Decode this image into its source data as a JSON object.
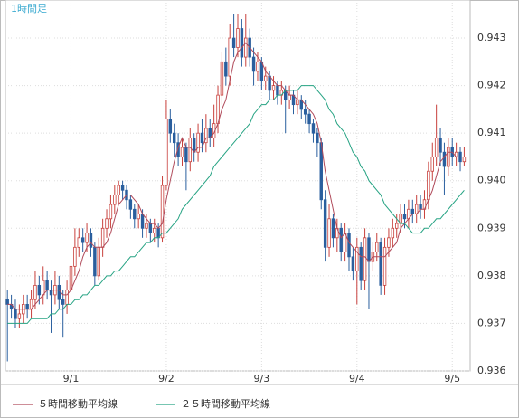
{
  "chart_data": {
    "type": "candlestick",
    "title": "1時間足",
    "open": [
      0.9375,
      0.9374,
      0.9373,
      0.9371,
      0.9372,
      0.9374,
      0.9373,
      0.9375,
      0.9378,
      0.9376,
      0.9379,
      0.9377,
      0.9376,
      0.9378,
      0.9375,
      0.9374,
      0.9377,
      0.9382,
      0.9386,
      0.9388,
      0.9387,
      0.9389,
      0.9386,
      0.938,
      0.9386,
      0.939,
      0.9392,
      0.9395,
      0.9397,
      0.9399,
      0.9398,
      0.9396,
      0.9394,
      0.9392,
      0.9393,
      0.939,
      0.9391,
      0.9389,
      0.939,
      0.9388,
      0.9399,
      0.9413,
      0.941,
      0.9408,
      0.9405,
      0.9407,
      0.9404,
      0.9409,
      0.9406,
      0.941,
      0.9408,
      0.9411,
      0.9409,
      0.9412,
      0.9418,
      0.9425,
      0.9422,
      0.943,
      0.9428,
      0.9432,
      0.9426,
      0.943,
      0.9426,
      0.9423,
      0.9425,
      0.9421,
      0.9422,
      0.9419,
      0.942,
      0.9418,
      0.9419,
      0.9417,
      0.9418,
      0.9416,
      0.9417,
      0.9415,
      0.9414,
      0.9412,
      0.941,
      0.9408,
      0.9396,
      0.9386,
      0.9392,
      0.9388,
      0.939,
      0.9385,
      0.9389,
      0.9384,
      0.9381,
      0.9386,
      0.9379,
      0.9388,
      0.9383,
      0.9385,
      0.9387,
      0.9378,
      0.9386,
      0.9388,
      0.939,
      0.9391,
      0.9393,
      0.9392,
      0.9394,
      0.9393,
      0.9395,
      0.9394,
      0.9396,
      0.9402,
      0.9405,
      0.9409,
      0.9406,
      0.9403,
      0.9407,
      0.9405,
      0.9406,
      0.9404
    ],
    "high": [
      0.9377,
      0.9376,
      0.9375,
      0.9374,
      0.9376,
      0.9376,
      0.9377,
      0.9381,
      0.938,
      0.9382,
      0.9381,
      0.9379,
      0.9381,
      0.938,
      0.9377,
      0.9379,
      0.9384,
      0.939,
      0.939,
      0.939,
      0.9391,
      0.939,
      0.9387,
      0.9388,
      0.9392,
      0.9394,
      0.9397,
      0.9399,
      0.94,
      0.94,
      0.9399,
      0.9397,
      0.9395,
      0.9395,
      0.9394,
      0.9393,
      0.9392,
      0.9392,
      0.9391,
      0.9401,
      0.9417,
      0.9415,
      0.9412,
      0.941,
      0.9409,
      0.9408,
      0.9411,
      0.941,
      0.9412,
      0.9413,
      0.9414,
      0.9413,
      0.9416,
      0.942,
      0.9427,
      0.9428,
      0.9433,
      0.9435,
      0.9435,
      0.9434,
      0.9435,
      0.9432,
      0.9428,
      0.9427,
      0.9426,
      0.9424,
      0.9423,
      0.9422,
      0.9421,
      0.9421,
      0.942,
      0.942,
      0.9419,
      0.9419,
      0.9418,
      0.9417,
      0.9415,
      0.9413,
      0.9411,
      0.9409,
      0.9398,
      0.9395,
      0.9393,
      0.9392,
      0.9391,
      0.9391,
      0.939,
      0.9386,
      0.9388,
      0.9387,
      0.939,
      0.9389,
      0.9387,
      0.9389,
      0.9388,
      0.9388,
      0.939,
      0.9392,
      0.9393,
      0.9395,
      0.9395,
      0.9396,
      0.9396,
      0.9397,
      0.9397,
      0.9398,
      0.9404,
      0.9408,
      0.9416,
      0.9411,
      0.9408,
      0.9409,
      0.9409,
      0.9408,
      0.9407,
      0.9407
    ],
    "low": [
      0.9362,
      0.9371,
      0.9369,
      0.9369,
      0.937,
      0.9371,
      0.9371,
      0.9373,
      0.9374,
      0.9374,
      0.9375,
      0.9368,
      0.9374,
      0.9373,
      0.9367,
      0.9372,
      0.9376,
      0.938,
      0.9384,
      0.9385,
      0.9385,
      0.9384,
      0.9378,
      0.9379,
      0.9384,
      0.9388,
      0.939,
      0.9393,
      0.9395,
      0.9396,
      0.9394,
      0.9392,
      0.939,
      0.939,
      0.9388,
      0.9388,
      0.9387,
      0.9387,
      0.9386,
      0.9387,
      0.9398,
      0.9408,
      0.9405,
      0.9403,
      0.9403,
      0.9398,
      0.9402,
      0.9404,
      0.9404,
      0.9406,
      0.9406,
      0.9407,
      0.9407,
      0.941,
      0.9416,
      0.942,
      0.942,
      0.9426,
      0.9426,
      0.9424,
      0.9424,
      0.9424,
      0.942,
      0.9421,
      0.9419,
      0.9419,
      0.9417,
      0.9417,
      0.9416,
      0.9416,
      0.941,
      0.9415,
      0.9414,
      0.9414,
      0.9413,
      0.9412,
      0.941,
      0.9408,
      0.9405,
      0.9394,
      0.9383,
      0.9384,
      0.9386,
      0.9385,
      0.9383,
      0.9383,
      0.9381,
      0.9379,
      0.9374,
      0.9377,
      0.9377,
      0.9373,
      0.9381,
      0.9383,
      0.9376,
      0.9376,
      0.9384,
      0.9386,
      0.9388,
      0.9389,
      0.939,
      0.939,
      0.9391,
      0.9391,
      0.9392,
      0.9392,
      0.9394,
      0.94,
      0.9403,
      0.9403,
      0.9397,
      0.9401,
      0.9403,
      0.9403,
      0.9402,
      0.9403
    ],
    "close": [
      0.9374,
      0.9373,
      0.9371,
      0.9372,
      0.9374,
      0.9373,
      0.9375,
      0.9378,
      0.9376,
      0.9379,
      0.9377,
      0.9376,
      0.9378,
      0.9375,
      0.9374,
      0.9377,
      0.9382,
      0.9386,
      0.9388,
      0.9387,
      0.9389,
      0.9386,
      0.938,
      0.9386,
      0.939,
      0.9392,
      0.9395,
      0.9397,
      0.9399,
      0.9398,
      0.9396,
      0.9394,
      0.9392,
      0.9393,
      0.939,
      0.9391,
      0.9389,
      0.939,
      0.9388,
      0.9399,
      0.9413,
      0.941,
      0.9408,
      0.9405,
      0.9407,
      0.9404,
      0.9409,
      0.9406,
      0.941,
      0.9408,
      0.9411,
      0.9409,
      0.9412,
      0.9418,
      0.9425,
      0.9422,
      0.943,
      0.9428,
      0.9432,
      0.9426,
      0.943,
      0.9426,
      0.9423,
      0.9425,
      0.9421,
      0.9422,
      0.9419,
      0.942,
      0.9418,
      0.9419,
      0.9417,
      0.9418,
      0.9416,
      0.9417,
      0.9415,
      0.9414,
      0.9412,
      0.941,
      0.9408,
      0.9396,
      0.9386,
      0.9392,
      0.9388,
      0.939,
      0.9385,
      0.9389,
      0.9384,
      0.9381,
      0.9386,
      0.9379,
      0.9388,
      0.9383,
      0.9385,
      0.9387,
      0.9378,
      0.9386,
      0.9388,
      0.939,
      0.9391,
      0.9393,
      0.9392,
      0.9394,
      0.9393,
      0.9395,
      0.9394,
      0.9396,
      0.9402,
      0.9405,
      0.9409,
      0.9406,
      0.9403,
      0.9407,
      0.9405,
      0.9406,
      0.9404,
      0.9405
    ],
    "up_color": "#c8403c",
    "down_color": "#2a5f9e",
    "series": [
      {
        "name": "５時間移動平均線",
        "color": "#b04a5a",
        "values": [
          0.9374,
          0.9374,
          0.9373,
          0.9373,
          0.9373,
          0.9373,
          0.9373,
          0.9374,
          0.9375,
          0.9376,
          0.9377,
          0.9377,
          0.9377,
          0.9377,
          0.9376,
          0.9376,
          0.9377,
          0.9379,
          0.9381,
          0.9384,
          0.9386,
          0.9387,
          0.9386,
          0.9386,
          0.9386,
          0.9387,
          0.9389,
          0.9392,
          0.9395,
          0.9396,
          0.9397,
          0.9397,
          0.9396,
          0.9395,
          0.9393,
          0.9392,
          0.9391,
          0.9391,
          0.939,
          0.9391,
          0.9396,
          0.94,
          0.9404,
          0.9407,
          0.9409,
          0.9407,
          0.9407,
          0.9406,
          0.9407,
          0.9407,
          0.9409,
          0.9409,
          0.941,
          0.9412,
          0.9415,
          0.9417,
          0.9421,
          0.9425,
          0.9427,
          0.9428,
          0.9429,
          0.9428,
          0.9427,
          0.9426,
          0.9425,
          0.9423,
          0.9422,
          0.9421,
          0.942,
          0.942,
          0.9419,
          0.9418,
          0.9418,
          0.9417,
          0.9417,
          0.9416,
          0.9415,
          0.9414,
          0.9412,
          0.9408,
          0.9402,
          0.9398,
          0.9394,
          0.939,
          0.9388,
          0.9389,
          0.9387,
          0.9386,
          0.9385,
          0.9384,
          0.9384,
          0.9383,
          0.9384,
          0.9384,
          0.9384,
          0.9384,
          0.9385,
          0.9386,
          0.9387,
          0.939,
          0.9391,
          0.9392,
          0.9393,
          0.9393,
          0.9394,
          0.9394,
          0.9396,
          0.9398,
          0.9401,
          0.9404,
          0.9405,
          0.9406,
          0.9406,
          0.9405,
          0.9405,
          0.9405
        ]
      },
      {
        "name": "２５時間移動平均線",
        "color": "#26a383",
        "values": [
          0.937,
          0.937,
          0.937,
          0.937,
          0.937,
          0.937,
          0.9371,
          0.9371,
          0.9371,
          0.9371,
          0.9371,
          0.9372,
          0.9372,
          0.9373,
          0.9373,
          0.9374,
          0.9374,
          0.9375,
          0.9375,
          0.9376,
          0.9376,
          0.9377,
          0.9378,
          0.9378,
          0.9379,
          0.938,
          0.938,
          0.9381,
          0.9381,
          0.9382,
          0.9383,
          0.9384,
          0.9384,
          0.9385,
          0.9386,
          0.9387,
          0.9387,
          0.9388,
          0.9388,
          0.9389,
          0.9389,
          0.939,
          0.9391,
          0.9392,
          0.9394,
          0.9395,
          0.9396,
          0.9397,
          0.9398,
          0.9399,
          0.94,
          0.9401,
          0.9403,
          0.9404,
          0.9405,
          0.9406,
          0.9407,
          0.9408,
          0.9409,
          0.941,
          0.9411,
          0.9412,
          0.9414,
          0.9415,
          0.9416,
          0.9416,
          0.9417,
          0.9417,
          0.9418,
          0.9418,
          0.9419,
          0.9419,
          0.9419,
          0.9419,
          0.942,
          0.942,
          0.942,
          0.942,
          0.9419,
          0.9418,
          0.9417,
          0.9415,
          0.9414,
          0.9412,
          0.9411,
          0.941,
          0.9408,
          0.9406,
          0.9405,
          0.9403,
          0.9402,
          0.94,
          0.9399,
          0.9398,
          0.9397,
          0.9395,
          0.9394,
          0.9393,
          0.9392,
          0.9391,
          0.9391,
          0.939,
          0.9389,
          0.9389,
          0.9389,
          0.939,
          0.939,
          0.9391,
          0.9392,
          0.9392,
          0.9393,
          0.9394,
          0.9395,
          0.9396,
          0.9397,
          0.9398
        ]
      }
    ],
    "ylim": [
      0.936,
      0.9438
    ],
    "yticks": [
      0.936,
      0.937,
      0.938,
      0.939,
      {
        "value": 0.94,
        "label": "0.940"
      },
      0.941,
      0.942,
      0.943
    ],
    "xlim": [
      -0.5,
      116.5
    ],
    "xticks": [
      {
        "value": 16,
        "label": "9/1"
      },
      {
        "value": 40,
        "label": "9/2"
      },
      {
        "value": 64,
        "label": "9/3"
      },
      {
        "value": 88,
        "label": "9/4"
      },
      {
        "value": 112,
        "label": "9/5"
      }
    ],
    "grid": true
  }
}
